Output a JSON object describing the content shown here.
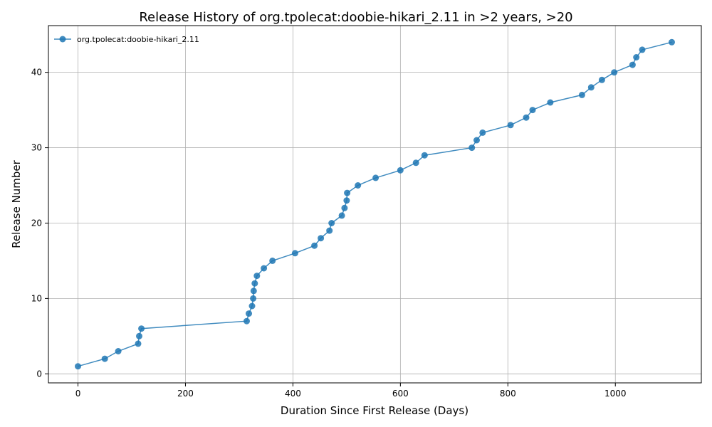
{
  "chart_data": {
    "type": "line",
    "title": "Release History of org.tpolecat:doobie-hikari_2.11 in >2 years, >20",
    "xlabel": "Duration Since First Release (Days)",
    "ylabel": "Release Number",
    "xlim": [
      -55,
      1160
    ],
    "ylim": [
      -1.2,
      46.2
    ],
    "xticks": [
      0,
      200,
      400,
      600,
      800,
      1000
    ],
    "yticks": [
      0,
      10,
      20,
      30,
      40
    ],
    "grid": true,
    "legend_position": "top-left",
    "series": [
      {
        "name": "org.tpolecat:doobie-hikari_2.11",
        "color": "#1f77b4",
        "x": [
          0,
          50,
          75,
          112,
          114,
          118,
          314,
          318,
          324,
          326,
          327,
          329,
          333,
          346,
          362,
          404,
          440,
          452,
          468,
          472,
          491,
          496,
          500,
          501,
          521,
          554,
          600,
          629,
          645,
          733,
          742,
          753,
          805,
          834,
          846,
          879,
          938,
          955,
          975,
          998,
          1032,
          1039,
          1050,
          1105
        ],
        "y": [
          1,
          2,
          3,
          4,
          5,
          6,
          7,
          8,
          9,
          10,
          11,
          12,
          13,
          14,
          15,
          16,
          17,
          18,
          19,
          20,
          21,
          22,
          23,
          24,
          25,
          26,
          27,
          28,
          29,
          30,
          31,
          32,
          33,
          34,
          35,
          36,
          37,
          38,
          39,
          40,
          41,
          42,
          43,
          44
        ]
      }
    ]
  }
}
